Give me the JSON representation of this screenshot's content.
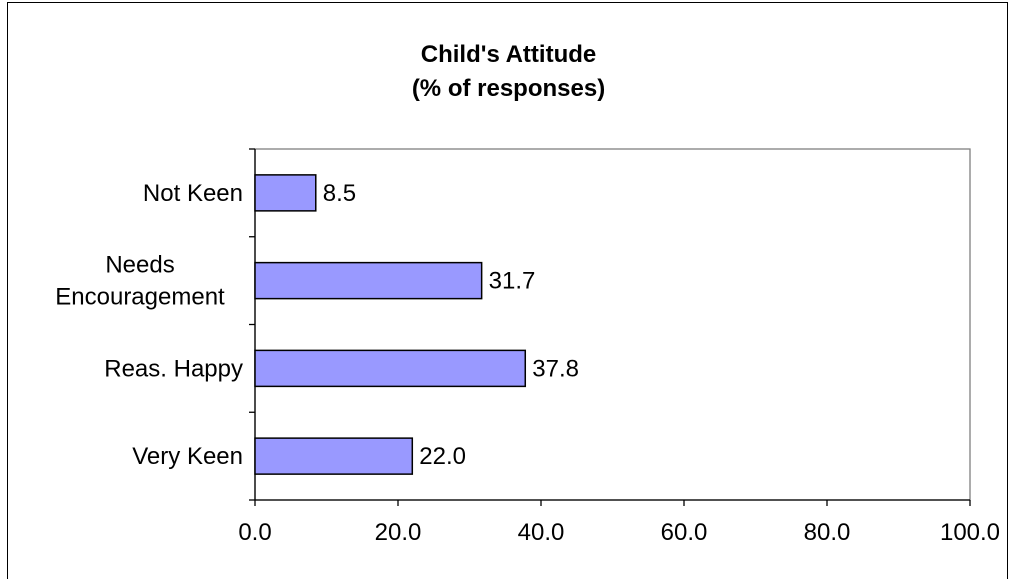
{
  "chart_data": {
    "type": "bar",
    "orientation": "horizontal",
    "title": "Child's Attitude",
    "subtitle": "(% of responses)",
    "xlabel": "",
    "ylabel": "",
    "categories": [
      "Not Keen",
      "Needs Encouragement",
      "Reas. Happy",
      "Very Keen"
    ],
    "category_label_lines": [
      [
        "Not Keen"
      ],
      [
        "Needs",
        "Encouragement"
      ],
      [
        "Reas. Happy"
      ],
      [
        "Very Keen"
      ]
    ],
    "values": [
      8.5,
      31.7,
      37.8,
      22.0
    ],
    "value_labels": [
      "8.5",
      "31.7",
      "37.8",
      "22.0"
    ],
    "xlim": [
      0,
      100
    ],
    "x_ticks": [
      "0.0",
      "20.0",
      "40.0",
      "60.0",
      "80.0",
      "100.0"
    ],
    "grid": false,
    "legend": "none",
    "bar_color": "#9999ff",
    "bar_edge_color": "#000000"
  }
}
